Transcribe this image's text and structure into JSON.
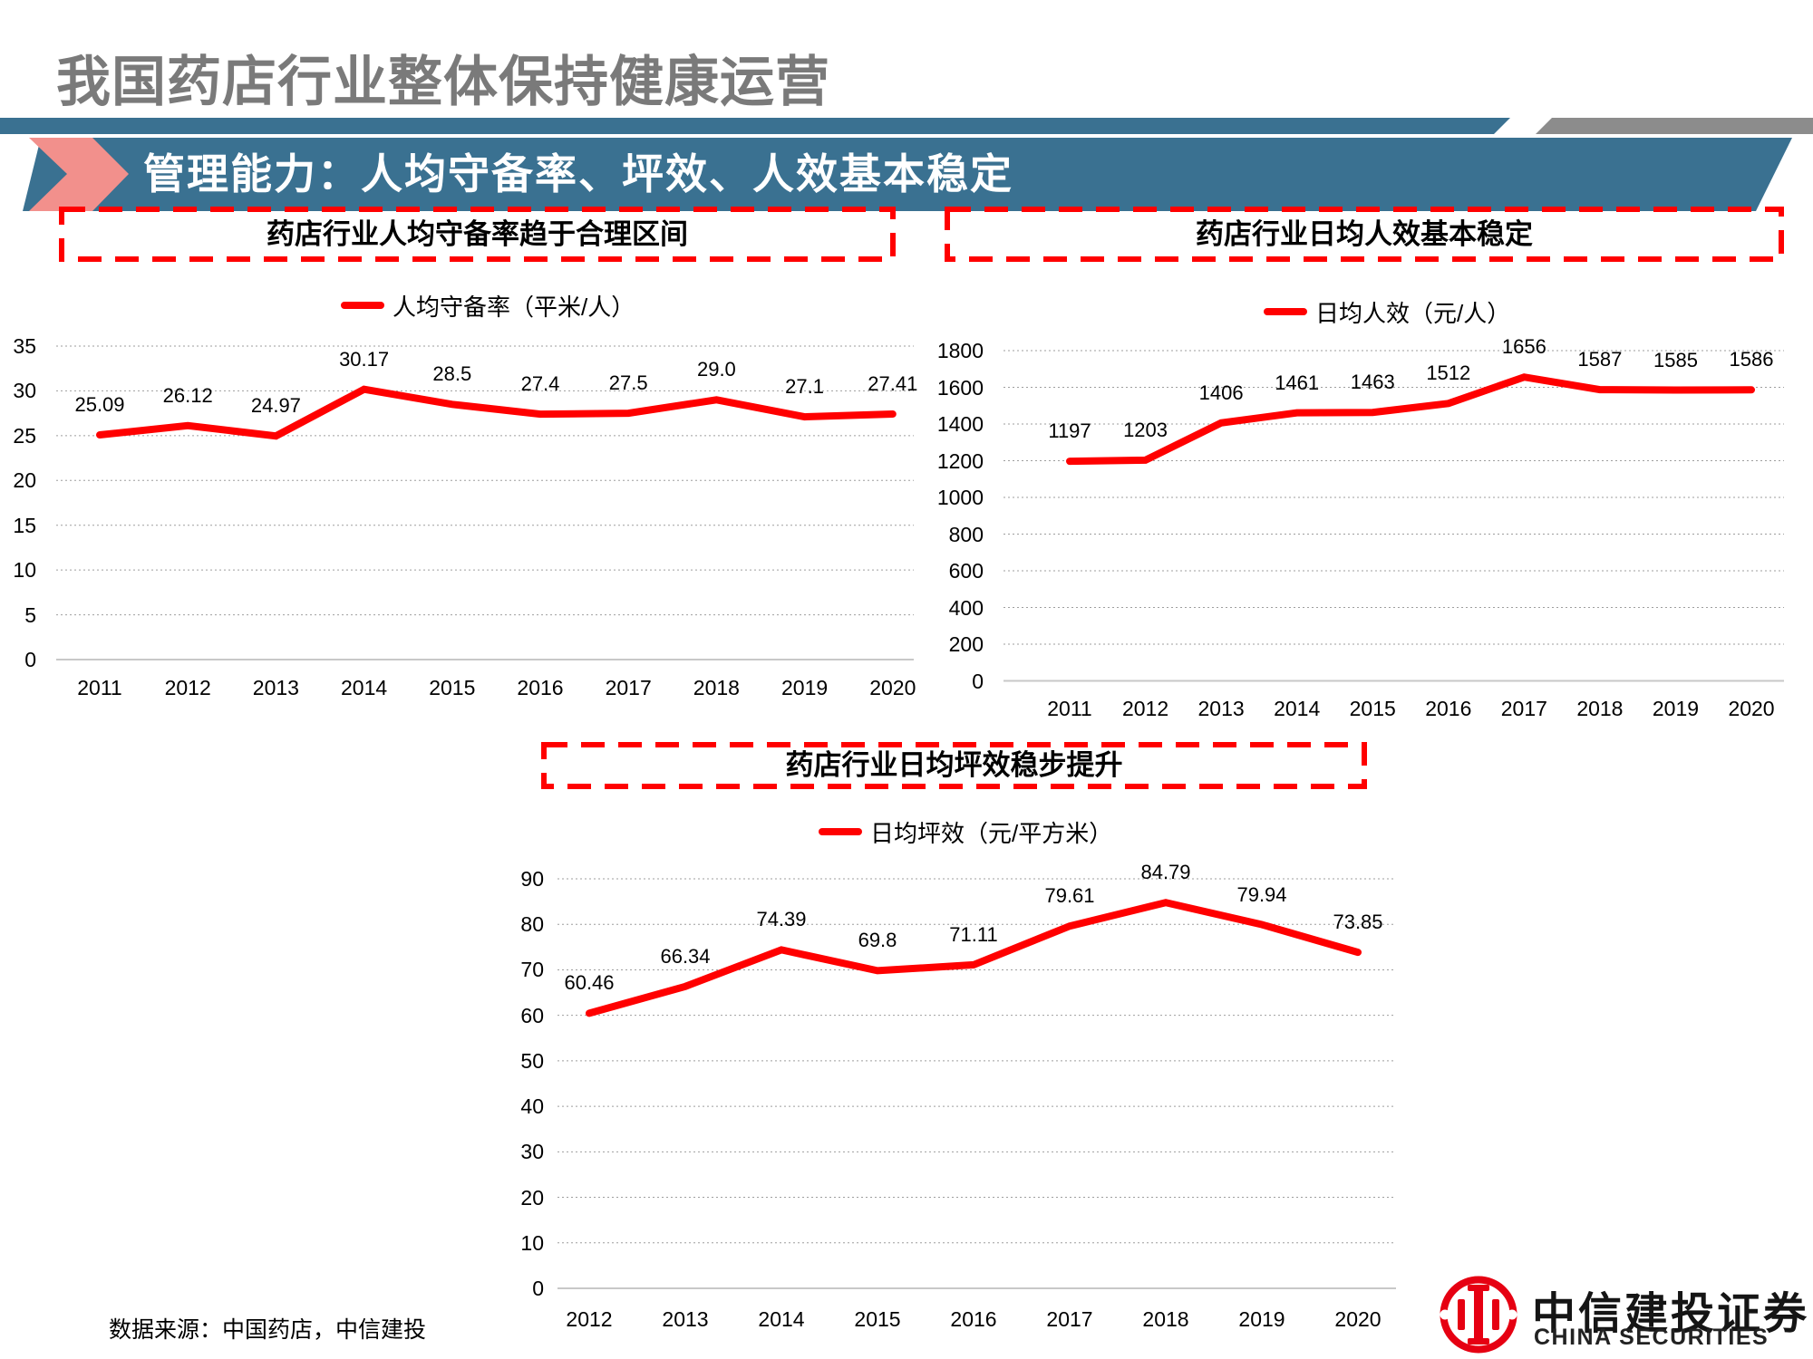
{
  "page": {
    "title": "我国药店行业整体保持健康运营"
  },
  "banner": {
    "text": "管理能力：人均守备率、坪效、人效基本稳定"
  },
  "footer": {
    "source": "数据来源：中国药店，中信建投"
  },
  "logo": {
    "name_cn": "中信建投证券",
    "name_en": "CHINA SECURITIES"
  },
  "theme": {
    "red": "#FF0000",
    "banner_blue": "#3A7191",
    "pink": "#F2908C",
    "shape_gray": "#8C8C8C",
    "title_gray": "#7A7A7A",
    "grid_gray": "#9E9E9E",
    "axis_gray": "#C8C8C8",
    "text_black": "#000000",
    "logo_red": "#E60012"
  },
  "chart_data": [
    {
      "type": "line",
      "title": "药店行业人均守备率趋于合理区间",
      "legend": "人均守备率（平米/人）",
      "categories": [
        "2011",
        "2012",
        "2013",
        "2014",
        "2015",
        "2016",
        "2017",
        "2018",
        "2019",
        "2020"
      ],
      "values": [
        25.09,
        26.12,
        24.97,
        30.17,
        28.5,
        27.4,
        27.5,
        29.0,
        27.1,
        27.41
      ],
      "labels": [
        "25.09",
        "26.12",
        "24.97",
        "30.17",
        "28.5",
        "27.4",
        "27.5",
        "29.0",
        "27.1",
        "27.41"
      ],
      "xlabel": "",
      "ylabel": "",
      "ylim": [
        0,
        35
      ],
      "ystep": 5,
      "grid": true,
      "legend_position": "top",
      "line_color": "#FF0000"
    },
    {
      "type": "line",
      "title": "药店行业日均人效基本稳定",
      "legend": "日均人效（元/人）",
      "categories": [
        "2011",
        "2012",
        "2013",
        "2014",
        "2015",
        "2016",
        "2017",
        "2018",
        "2019",
        "2020"
      ],
      "values": [
        1197,
        1203,
        1406,
        1461,
        1463,
        1512,
        1656,
        1587,
        1585,
        1586
      ],
      "labels": [
        "1197",
        "1203",
        "1406",
        "1461",
        "1463",
        "1512",
        "1656",
        "1587",
        "1585",
        "1586"
      ],
      "xlabel": "",
      "ylabel": "",
      "ylim": [
        0,
        1800
      ],
      "ystep": 200,
      "grid": true,
      "legend_position": "top",
      "line_color": "#FF0000"
    },
    {
      "type": "line",
      "title": "药店行业日均坪效稳步提升",
      "legend": "日均坪效（元/平方米）",
      "categories": [
        "2012",
        "2013",
        "2014",
        "2015",
        "2016",
        "2017",
        "2018",
        "2019",
        "2020"
      ],
      "values": [
        60.46,
        66.34,
        74.39,
        69.8,
        71.11,
        79.61,
        84.79,
        79.94,
        73.85
      ],
      "labels": [
        "60.46",
        "66.34",
        "74.39",
        "69.8",
        "71.11",
        "79.61",
        "84.79",
        "79.94",
        "73.85"
      ],
      "xlabel": "",
      "ylabel": "",
      "ylim": [
        0,
        90
      ],
      "ystep": 10,
      "grid": true,
      "legend_position": "top",
      "line_color": "#FF0000"
    }
  ]
}
